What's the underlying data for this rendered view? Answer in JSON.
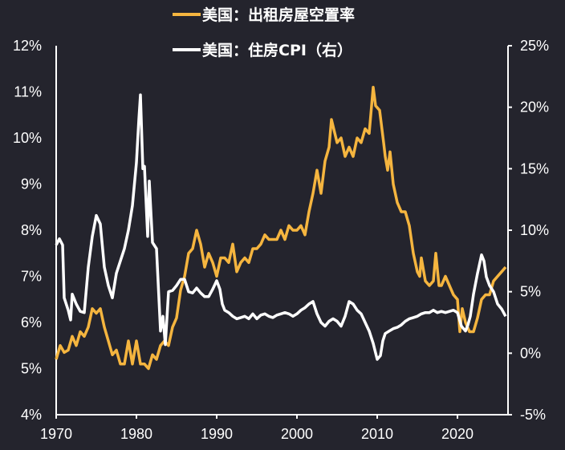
{
  "chart_data": {
    "type": "line",
    "legend_position": "top",
    "grid": false,
    "background": "#24242d",
    "x_ticks": [
      "1970",
      "1980",
      "1990",
      "2000",
      "2010",
      "2020"
    ],
    "xlim": [
      1970,
      2026.3
    ],
    "left_axis": {
      "ylim": [
        4,
        12
      ],
      "ticks": [
        "4%",
        "5%",
        "6%",
        "7%",
        "8%",
        "9%",
        "10%",
        "11%",
        "12%"
      ]
    },
    "right_axis": {
      "ylim": [
        -5,
        25
      ],
      "ticks": [
        "-5%",
        "0%",
        "5%",
        "10%",
        "15%",
        "20%",
        "25%"
      ]
    },
    "series": [
      {
        "name": "美国：出租房屋空置率",
        "axis": "left",
        "color": "#f5b53f",
        "points": [
          [
            1970,
            5.2
          ],
          [
            1970.5,
            5.5
          ],
          [
            1971,
            5.35
          ],
          [
            1971.5,
            5.4
          ],
          [
            1972,
            5.7
          ],
          [
            1972.5,
            5.5
          ],
          [
            1973,
            5.8
          ],
          [
            1973.5,
            5.7
          ],
          [
            1974,
            5.9
          ],
          [
            1974.5,
            6.3
          ],
          [
            1975,
            6.2
          ],
          [
            1975.5,
            6.3
          ],
          [
            1976,
            5.9
          ],
          [
            1976.5,
            5.6
          ],
          [
            1977,
            5.3
          ],
          [
            1977.5,
            5.4
          ],
          [
            1978,
            5.1
          ],
          [
            1978.5,
            5.1
          ],
          [
            1979,
            5.6
          ],
          [
            1979.5,
            5.1
          ],
          [
            1980,
            5.6
          ],
          [
            1980.5,
            5.1
          ],
          [
            1981,
            5.1
          ],
          [
            1981.5,
            5.0
          ],
          [
            1982,
            5.3
          ],
          [
            1982.5,
            5.2
          ],
          [
            1983,
            5.5
          ],
          [
            1983.5,
            5.6
          ],
          [
            1984,
            5.5
          ],
          [
            1984.5,
            5.9
          ],
          [
            1985,
            6.1
          ],
          [
            1985.5,
            6.7
          ],
          [
            1986,
            7.0
          ],
          [
            1986.5,
            7.5
          ],
          [
            1987,
            7.6
          ],
          [
            1987.5,
            8.0
          ],
          [
            1988,
            7.7
          ],
          [
            1988.5,
            7.2
          ],
          [
            1989,
            7.5
          ],
          [
            1989.5,
            7.3
          ],
          [
            1990,
            7.0
          ],
          [
            1990.5,
            7.4
          ],
          [
            1991,
            7.4
          ],
          [
            1991.5,
            7.3
          ],
          [
            1992,
            7.7
          ],
          [
            1992.5,
            7.1
          ],
          [
            1993,
            7.3
          ],
          [
            1993.5,
            7.4
          ],
          [
            1994,
            7.3
          ],
          [
            1994.5,
            7.6
          ],
          [
            1995,
            7.6
          ],
          [
            1995.5,
            7.7
          ],
          [
            1996,
            7.9
          ],
          [
            1996.5,
            7.8
          ],
          [
            1997,
            7.8
          ],
          [
            1997.5,
            7.8
          ],
          [
            1998,
            8.0
          ],
          [
            1998.5,
            7.8
          ],
          [
            1999,
            8.1
          ],
          [
            1999.5,
            8.0
          ],
          [
            2000,
            8.0
          ],
          [
            2000.5,
            8.1
          ],
          [
            2001,
            7.9
          ],
          [
            2001.5,
            8.4
          ],
          [
            2002,
            8.8
          ],
          [
            2002.5,
            9.3
          ],
          [
            2003,
            8.8
          ],
          [
            2003.5,
            9.5
          ],
          [
            2004,
            9.8
          ],
          [
            2004.3,
            10.4
          ],
          [
            2005,
            9.9
          ],
          [
            2005.5,
            10.0
          ],
          [
            2006,
            9.6
          ],
          [
            2006.5,
            9.8
          ],
          [
            2007,
            9.6
          ],
          [
            2007.5,
            10.0
          ],
          [
            2008,
            9.9
          ],
          [
            2008.5,
            10.2
          ],
          [
            2009,
            10.1
          ],
          [
            2009.5,
            11.1
          ],
          [
            2009.8,
            10.7
          ],
          [
            2010.3,
            10.6
          ],
          [
            2010.8,
            9.9
          ],
          [
            2011,
            9.6
          ],
          [
            2011.3,
            9.3
          ],
          [
            2011.6,
            9.7
          ],
          [
            2012,
            9.0
          ],
          [
            2012.5,
            8.6
          ],
          [
            2013,
            8.4
          ],
          [
            2013.5,
            8.4
          ],
          [
            2014,
            8.1
          ],
          [
            2014.5,
            7.5
          ],
          [
            2015,
            7.1
          ],
          [
            2015.3,
            7.0
          ],
          [
            2015.5,
            7.4
          ],
          [
            2016,
            6.9
          ],
          [
            2016.5,
            6.8
          ],
          [
            2017,
            6.9
          ],
          [
            2017.3,
            7.5
          ],
          [
            2017.7,
            6.8
          ],
          [
            2018,
            6.8
          ],
          [
            2018.5,
            7.0
          ],
          [
            2019,
            6.8
          ],
          [
            2019.5,
            6.6
          ],
          [
            2020,
            6.5
          ],
          [
            2020.3,
            5.8
          ],
          [
            2020.6,
            6.3
          ],
          [
            2021,
            6.0
          ],
          [
            2021.5,
            5.8
          ],
          [
            2022,
            5.8
          ],
          [
            2022.5,
            6.1
          ],
          [
            2023,
            6.5
          ],
          [
            2023.5,
            6.6
          ],
          [
            2024,
            6.6
          ],
          [
            2024.5,
            6.9
          ],
          [
            2025,
            7.0
          ],
          [
            2025.5,
            7.1
          ],
          [
            2026,
            7.2
          ]
        ]
      },
      {
        "name": "美国：住房CPI（右）",
        "axis": "right",
        "color": "#ffffff",
        "points": [
          [
            1970,
            8.8
          ],
          [
            1970.4,
            9.3
          ],
          [
            1970.8,
            8.8
          ],
          [
            1971,
            4.5
          ],
          [
            1971.5,
            3.5
          ],
          [
            1971.8,
            2.7
          ],
          [
            1972,
            4.8
          ],
          [
            1972.5,
            4.0
          ],
          [
            1973,
            3.4
          ],
          [
            1973.5,
            3.3
          ],
          [
            1974,
            7
          ],
          [
            1974.5,
            9.5
          ],
          [
            1975,
            11.2
          ],
          [
            1975.5,
            10.5
          ],
          [
            1976,
            7
          ],
          [
            1976.5,
            5.5
          ],
          [
            1977,
            4.5
          ],
          [
            1977.5,
            6.5
          ],
          [
            1978,
            7.5
          ],
          [
            1978.5,
            8.5
          ],
          [
            1979,
            10.0
          ],
          [
            1979.5,
            12.0
          ],
          [
            1980,
            15.5
          ],
          [
            1980.3,
            19
          ],
          [
            1980.5,
            21.0
          ],
          [
            1980.8,
            15
          ],
          [
            1981,
            15.2
          ],
          [
            1981.4,
            9.5
          ],
          [
            1981.6,
            14.0
          ],
          [
            1982,
            9.0
          ],
          [
            1982.5,
            8.5
          ],
          [
            1983,
            1.8
          ],
          [
            1983.3,
            3
          ],
          [
            1983.6,
            0.7
          ],
          [
            1984,
            5.0
          ],
          [
            1984.5,
            5.1
          ],
          [
            1985,
            5.5
          ],
          [
            1985.5,
            6.0
          ],
          [
            1986,
            6.0
          ],
          [
            1986.5,
            5.0
          ],
          [
            1987,
            4.9
          ],
          [
            1987.5,
            5.3
          ],
          [
            1988,
            4.9
          ],
          [
            1988.5,
            4.6
          ],
          [
            1989,
            4.6
          ],
          [
            1989.5,
            5.2
          ],
          [
            1990,
            5.9
          ],
          [
            1990.4,
            5.2
          ],
          [
            1990.7,
            4.0
          ],
          [
            1991,
            3.5
          ],
          [
            1991.5,
            3.3
          ],
          [
            1992,
            3.0
          ],
          [
            1992.5,
            2.8
          ],
          [
            1993,
            2.9
          ],
          [
            1993.5,
            3.0
          ],
          [
            1994,
            2.8
          ],
          [
            1994.5,
            3.2
          ],
          [
            1995,
            2.8
          ],
          [
            1995.5,
            3.1
          ],
          [
            1996,
            3.2
          ],
          [
            1996.5,
            3.0
          ],
          [
            1997,
            2.9
          ],
          [
            1997.5,
            3.1
          ],
          [
            1998,
            3.2
          ],
          [
            1998.5,
            3.3
          ],
          [
            1999,
            3.2
          ],
          [
            1999.5,
            3.0
          ],
          [
            2000,
            3.2
          ],
          [
            2000.5,
            3.5
          ],
          [
            2001,
            3.7
          ],
          [
            2001.5,
            4.0
          ],
          [
            2002,
            4.2
          ],
          [
            2002.5,
            3.2
          ],
          [
            2003,
            2.5
          ],
          [
            2003.5,
            2.2
          ],
          [
            2004,
            2.6
          ],
          [
            2004.5,
            2.8
          ],
          [
            2005,
            2.6
          ],
          [
            2005.5,
            2.2
          ],
          [
            2006,
            3.0
          ],
          [
            2006.5,
            4.2
          ],
          [
            2007,
            4.0
          ],
          [
            2007.5,
            3.5
          ],
          [
            2008,
            3.2
          ],
          [
            2008.5,
            2.5
          ],
          [
            2009,
            1.8
          ],
          [
            2009.5,
            0.8
          ],
          [
            2010,
            -0.5
          ],
          [
            2010.4,
            -0.2
          ],
          [
            2010.7,
            1.0
          ],
          [
            2011,
            1.6
          ],
          [
            2011.5,
            1.8
          ],
          [
            2012,
            2.0
          ],
          [
            2012.5,
            2.1
          ],
          [
            2013,
            2.3
          ],
          [
            2013.5,
            2.6
          ],
          [
            2014,
            2.8
          ],
          [
            2014.5,
            2.9
          ],
          [
            2015,
            3.0
          ],
          [
            2015.5,
            3.2
          ],
          [
            2016,
            3.3
          ],
          [
            2016.5,
            3.3
          ],
          [
            2017,
            3.5
          ],
          [
            2017.5,
            3.3
          ],
          [
            2018,
            3.4
          ],
          [
            2018.5,
            3.3
          ],
          [
            2019,
            3.4
          ],
          [
            2019.5,
            3.5
          ],
          [
            2020,
            3.3
          ],
          [
            2020.5,
            2.2
          ],
          [
            2021,
            1.8
          ],
          [
            2021.3,
            2.3
          ],
          [
            2021.6,
            3.0
          ],
          [
            2022,
            4.8
          ],
          [
            2022.5,
            6.5
          ],
          [
            2023,
            8.0
          ],
          [
            2023.3,
            7.5
          ],
          [
            2023.6,
            6.2
          ],
          [
            2024,
            5.5
          ],
          [
            2024.5,
            5.0
          ],
          [
            2025,
            4.0
          ],
          [
            2025.5,
            3.6
          ],
          [
            2026,
            3.0
          ]
        ]
      }
    ]
  }
}
